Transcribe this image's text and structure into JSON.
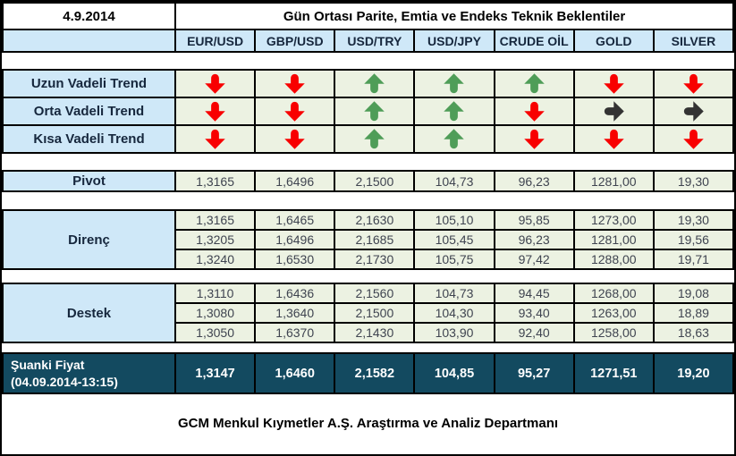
{
  "meta": {
    "date": "4.9.2014",
    "title": "Gün Ortası Parite, Emtia ve Endeks Teknik Beklentiler"
  },
  "columns": [
    "EUR/USD",
    "GBP/USD",
    "USD/TRY",
    "USD/JPY",
    "CRUDE OİL",
    "GOLD",
    "SILVER"
  ],
  "trend_rows": [
    {
      "label": "Uzun Vadeli Trend",
      "arrows": [
        "down",
        "down",
        "up",
        "up",
        "up",
        "down",
        "down"
      ]
    },
    {
      "label": "Orta Vadeli Trend",
      "arrows": [
        "down",
        "down",
        "up",
        "up",
        "down",
        "right",
        "right"
      ]
    },
    {
      "label": "Kısa Vadeli Trend",
      "arrows": [
        "down",
        "down",
        "up",
        "up",
        "down",
        "down",
        "down"
      ]
    }
  ],
  "arrow_colors": {
    "up": "#4f9d58",
    "down": "#f80000",
    "right": "#333333"
  },
  "pivot": {
    "label": "Pivot",
    "rows": [
      [
        "1,3165",
        "1,6496",
        "2,1500",
        "104,73",
        "96,23",
        "1281,00",
        "19,30"
      ]
    ]
  },
  "resistance": {
    "label": "Direnç",
    "rows": [
      [
        "1,3165",
        "1,6465",
        "2,1630",
        "105,10",
        "95,85",
        "1273,00",
        "19,30"
      ],
      [
        "1,3205",
        "1,6496",
        "2,1685",
        "105,45",
        "96,23",
        "1281,00",
        "19,56"
      ],
      [
        "1,3240",
        "1,6530",
        "2,1730",
        "105,75",
        "97,42",
        "1288,00",
        "19,71"
      ]
    ]
  },
  "support": {
    "label": "Destek",
    "rows": [
      [
        "1,3110",
        "1,6436",
        "2,1560",
        "104,73",
        "94,45",
        "1268,00",
        "19,08"
      ],
      [
        "1,3080",
        "1,3640",
        "2,1500",
        "104,30",
        "93,40",
        "1263,00",
        "18,89"
      ],
      [
        "1,3050",
        "1,6370",
        "2,1430",
        "103,90",
        "92,40",
        "1258,00",
        "18,63"
      ]
    ]
  },
  "current_price": {
    "label_line1": "Şuanki Fiyat",
    "label_line2": "(04.09.2014-13:15)",
    "values": [
      "1,3147",
      "1,6460",
      "2,1582",
      "104,85",
      "95,27",
      "1271,51",
      "19,20"
    ]
  },
  "footer": "GCM Menkul Kıymetler A.Ş. Araştırma ve Analiz Departmanı",
  "colors": {
    "header_bg": "#cfe8f8",
    "label_bg": "#cfe8f8",
    "value_bg": "#ecf2e2",
    "current_bg": "#134a60",
    "border": "#000000",
    "label_text": "#16273d",
    "value_text": "#3f4450",
    "current_text": "#ffffff",
    "arrow_up": "#4f9d58",
    "arrow_down": "#f80000",
    "arrow_right": "#333333"
  }
}
